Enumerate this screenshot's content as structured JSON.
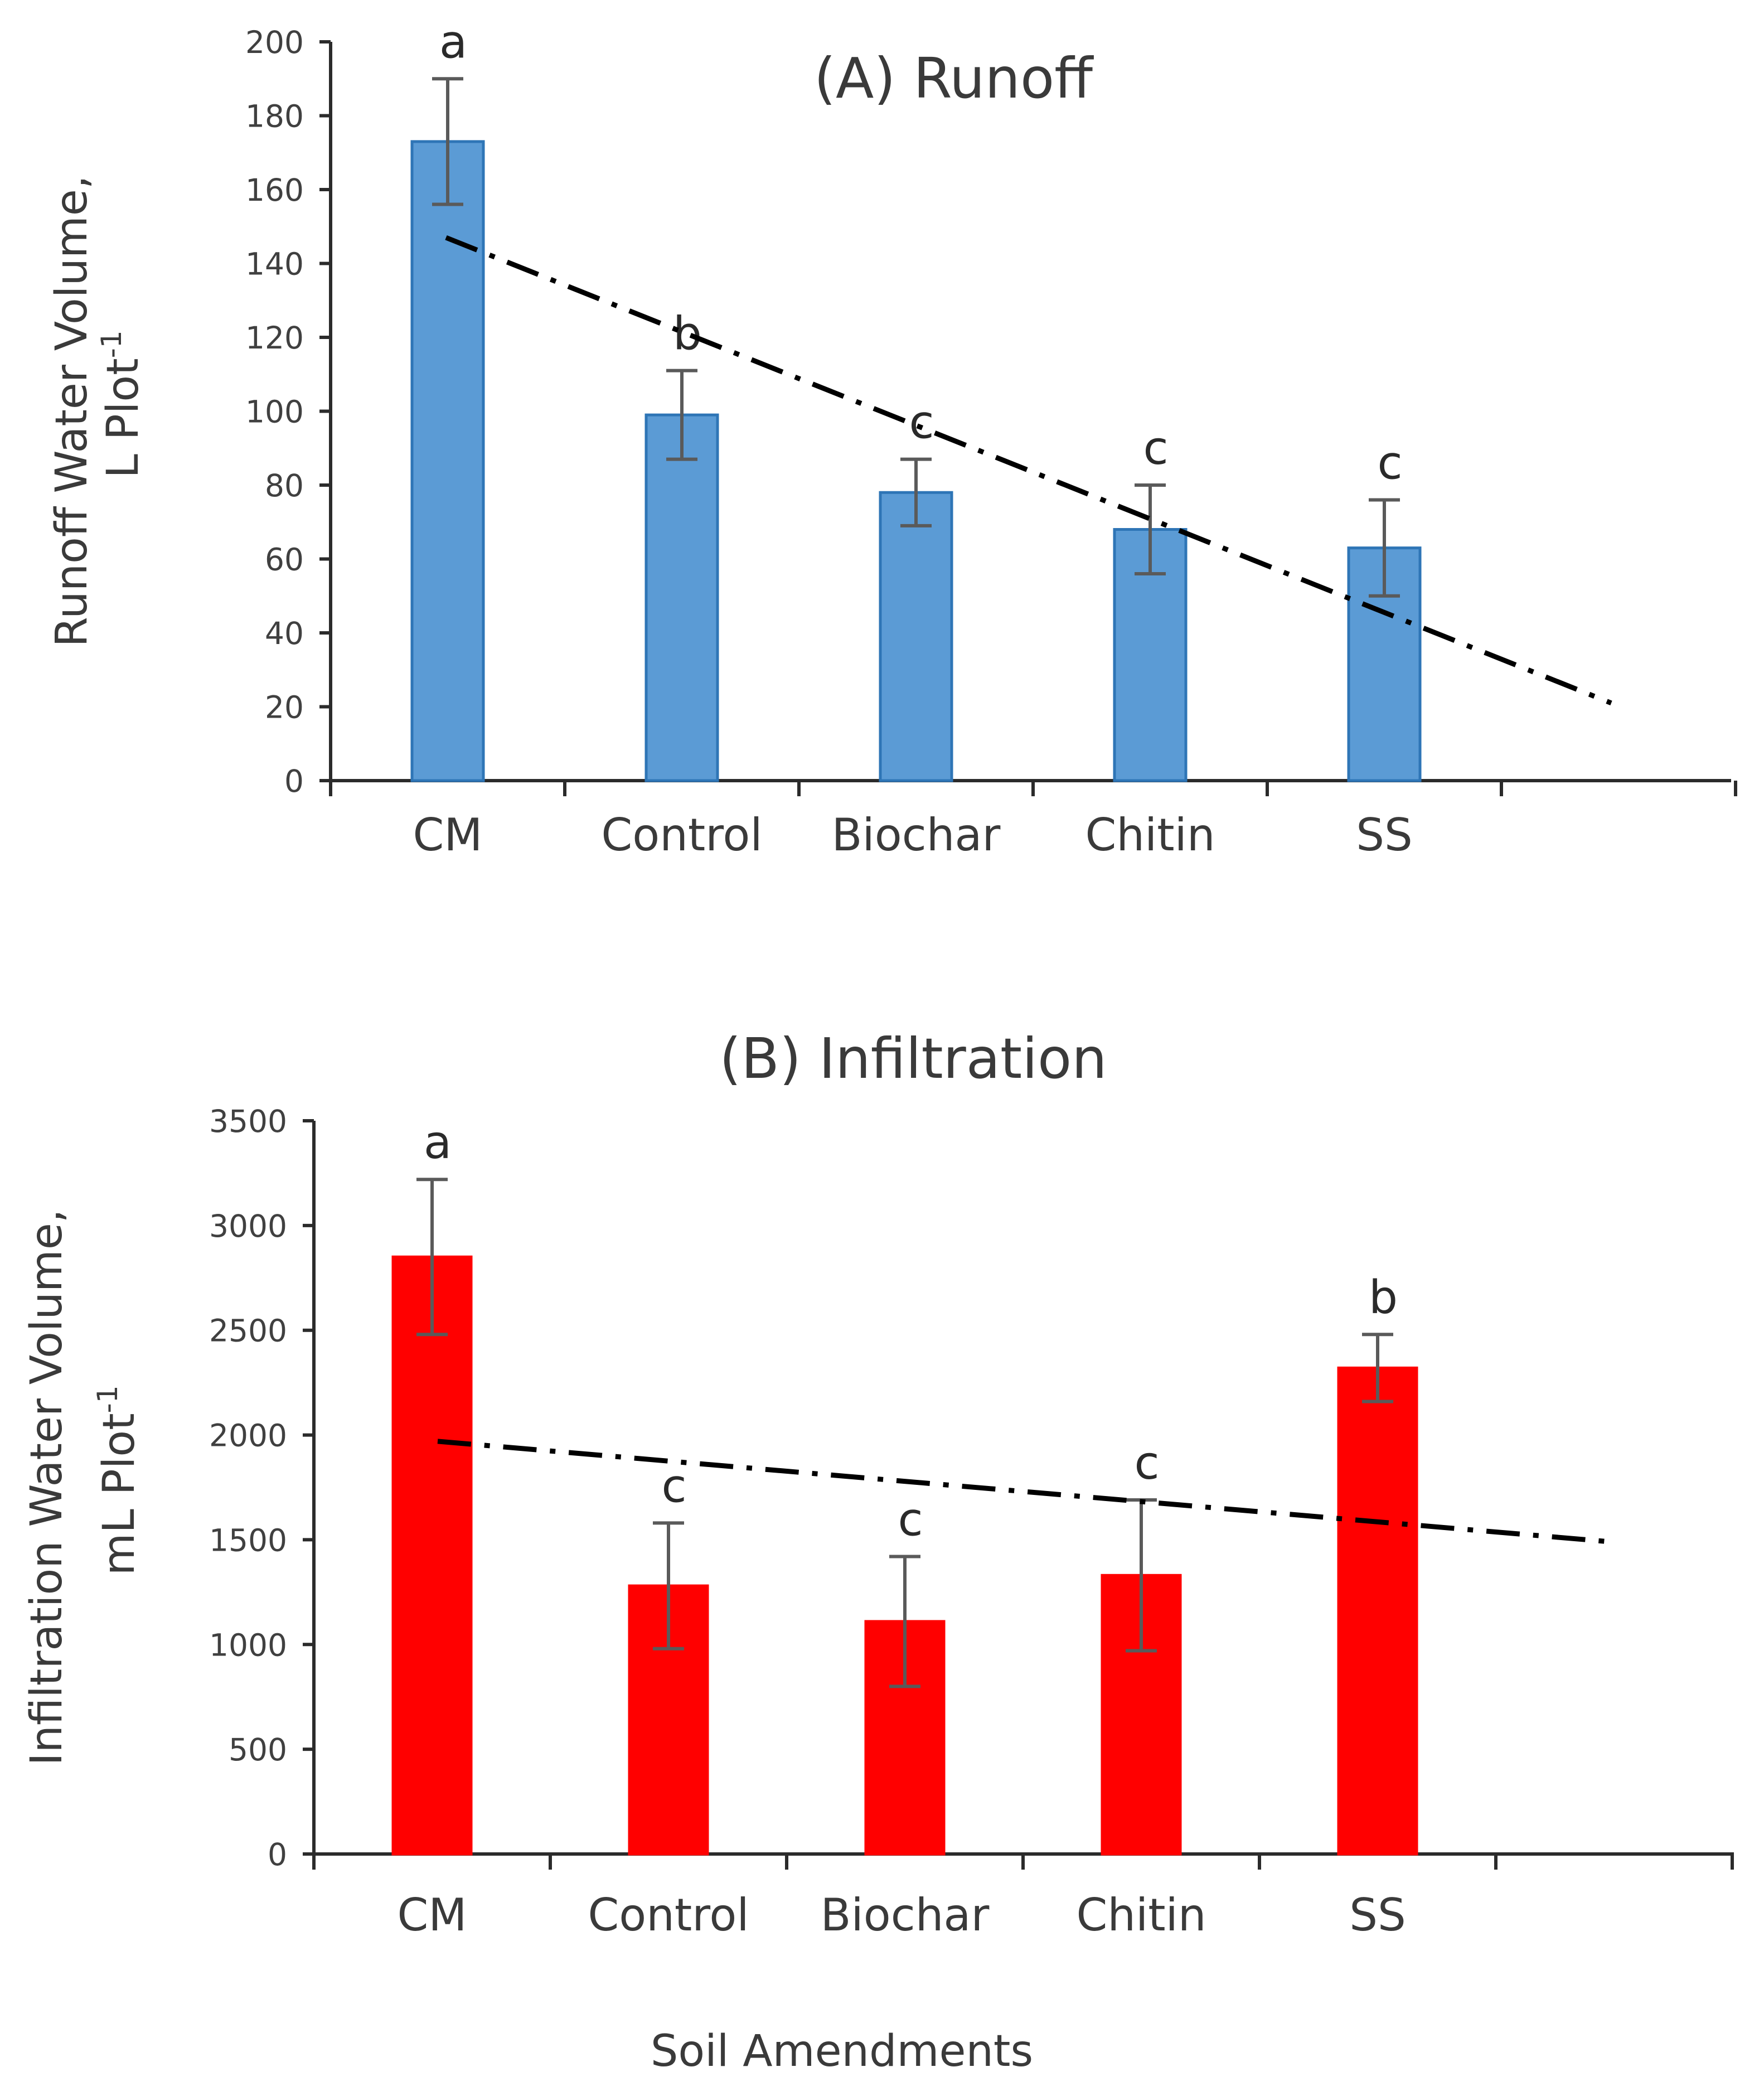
{
  "chart_data": [
    {
      "id": "A",
      "type": "bar",
      "title": "(A) Runoff",
      "ylabel_line1": "Runoff  Water Volume,",
      "ylabel_line2_main": "L Plot",
      "ylabel_line2_sup": "-1",
      "xlabel": "",
      "categories": [
        "CM",
        "Control",
        "Biochar",
        "Chitin",
        "SS"
      ],
      "values": [
        173,
        99,
        78,
        68,
        63
      ],
      "error": [
        17,
        12,
        9,
        12,
        13
      ],
      "letters": [
        "a",
        "b",
        "c",
        "c",
        "c"
      ],
      "ylim": [
        0,
        200
      ],
      "yticks": [
        "0",
        "20",
        "40",
        "60",
        "80",
        "100",
        "120",
        "140",
        "160",
        "180",
        "200"
      ],
      "bar_color": "#5b9bd5",
      "bar_edge_color": "#2e75b6",
      "trendline": {
        "style": "dash-dot",
        "start": 147,
        "end": 21
      }
    },
    {
      "id": "B",
      "type": "bar",
      "title": "(B) Infiltration",
      "ylabel_line1": "Infiltration Water  Volume,",
      "ylabel_line2_main": "mL Plot",
      "ylabel_line2_sup": "-1",
      "xlabel": "Soil Amendments",
      "categories": [
        "CM",
        "Control",
        "Biochar",
        "Chitin",
        "SS"
      ],
      "values": [
        2850,
        1280,
        1110,
        1330,
        2320
      ],
      "error": [
        370,
        300,
        310,
        360,
        160
      ],
      "letters": [
        "a",
        "c",
        "c",
        "c",
        "b"
      ],
      "ylim": [
        0,
        3500
      ],
      "yticks": [
        "0",
        "500",
        "1000",
        "1500",
        "2000",
        "2500",
        "3000",
        "3500"
      ],
      "bar_color": "#ff0000",
      "bar_edge_color": "#ff0000",
      "trendline": {
        "style": "dash-dot",
        "start": 1970,
        "end": 1490
      }
    }
  ]
}
